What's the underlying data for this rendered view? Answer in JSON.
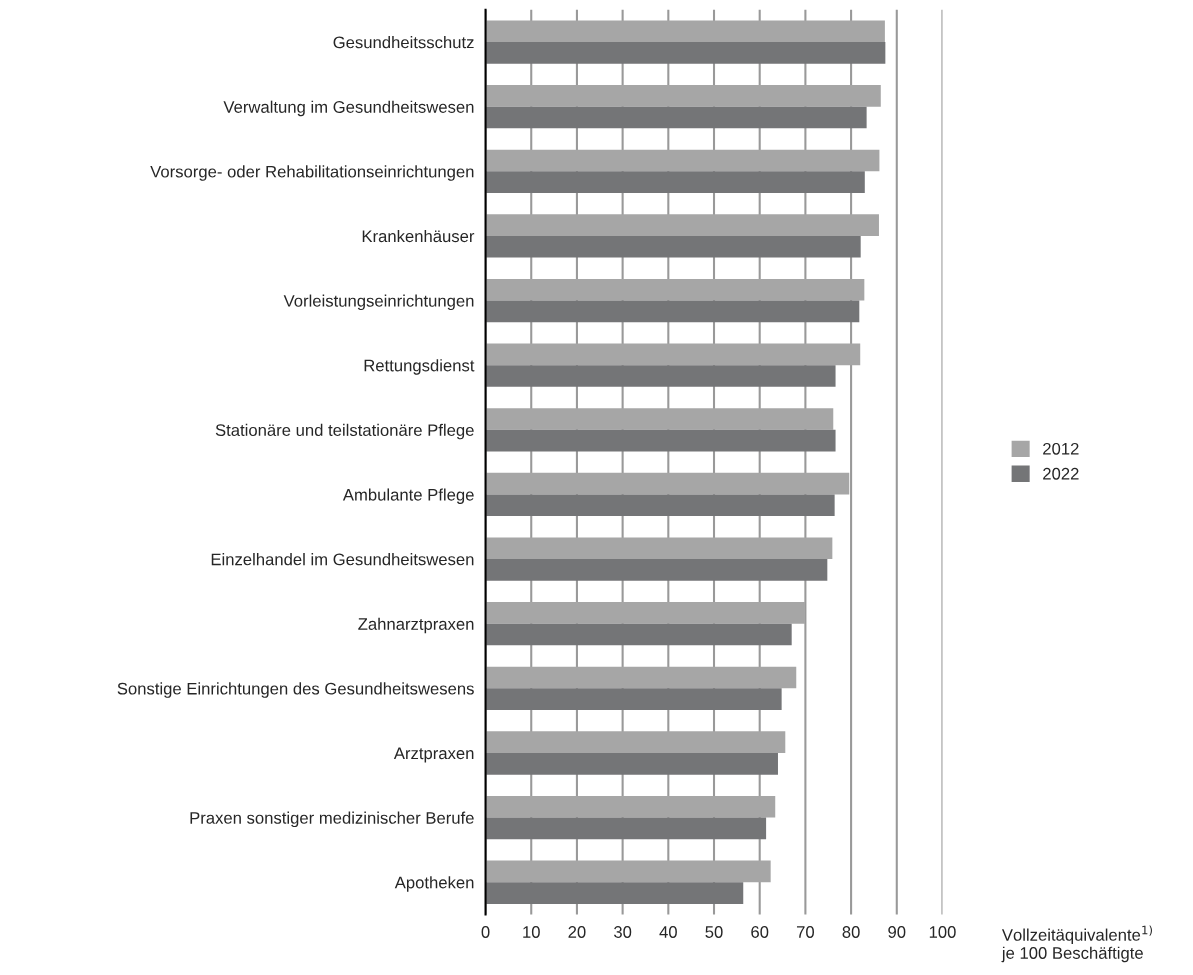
{
  "chart_data": {
    "type": "bar",
    "orientation": "horizontal",
    "categories": [
      "Gesundheitsschutz",
      "Verwaltung im Gesundheitswesen",
      "Vorsorge- oder Rehabilitationseinrichtungen",
      "Krankenhäuser",
      "Vorleistungseinrichtungen",
      "Rettungsdienst",
      "Stationäre und teilstationäre Pflege",
      "Ambulante Pflege",
      "Einzelhandel im Gesundheitswesen",
      "Zahnarztpraxen",
      "Sonstige Einrichtungen des Gesundheitswesens",
      "Arztpraxen",
      "Praxen sonstiger medizinischer Berufe",
      "Apotheken"
    ],
    "series": [
      {
        "name": "2012",
        "color": "#a6a6a6",
        "values": [
          87.4,
          86.5,
          86.2,
          86.1,
          82.9,
          82.0,
          76.1,
          79.6,
          75.9,
          69.9,
          68.0,
          65.6,
          63.4,
          62.4
        ]
      },
      {
        "name": "2022",
        "color": "#747577",
        "values": [
          87.5,
          83.4,
          83.0,
          82.1,
          81.8,
          76.6,
          76.6,
          76.4,
          74.8,
          67.0,
          64.8,
          64.0,
          61.4,
          56.4
        ]
      }
    ],
    "xlabel": "Vollzeitäquivalente$^{1)}$\nje 100 Beschäftigte",
    "xlim": [
      0,
      100
    ],
    "xticks": [
      0,
      10,
      20,
      30,
      40,
      50,
      60,
      70,
      80,
      90,
      100
    ],
    "grid": "x",
    "legend": "right"
  }
}
